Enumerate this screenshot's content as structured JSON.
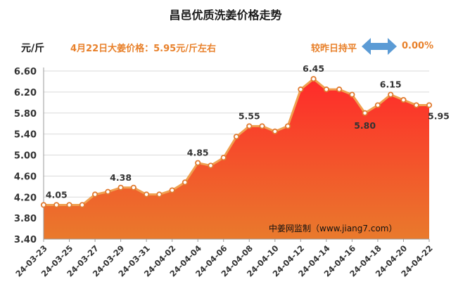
{
  "header": {
    "title": "昌邑优质洗姜价格走势",
    "unit": "元/斤",
    "price_note": "4月22日大姜价格：5.95元/斤左右",
    "trend_label": "较昨日持平",
    "trend_value": "0.00%",
    "trend_icon": "double-arrow-icon"
  },
  "watermark": "中姜网监制（www.jiang7.com）",
  "colors": {
    "accent": "#e8802a",
    "line": "#f0a050",
    "area_top": "#ff2a2a",
    "area_bottom": "#e97a2c",
    "marker_fill": "#ffffff",
    "arrow": "#5b9bd5"
  },
  "chart_data": {
    "type": "area",
    "title": "昌邑优质洗姜价格走势",
    "xlabel": "",
    "ylabel": "元/斤",
    "ylim": [
      3.4,
      6.6
    ],
    "yticks": [
      "3.40",
      "3.80",
      "4.20",
      "4.60",
      "5.00",
      "5.40",
      "5.80",
      "6.20",
      "6.60"
    ],
    "grid": true,
    "x": [
      "24-03-23",
      "24-03-24",
      "24-03-25",
      "24-03-26",
      "24-03-27",
      "24-03-28",
      "24-03-29",
      "24-03-30",
      "24-03-31",
      "24-04-01",
      "24-04-02",
      "24-04-03",
      "24-04-04",
      "24-04-05",
      "24-04-06",
      "24-04-07",
      "24-04-08",
      "24-04-09",
      "24-04-10",
      "24-04-11",
      "24-04-12",
      "24-04-13",
      "24-04-14",
      "24-04-15",
      "24-04-16",
      "24-04-17",
      "24-04-18",
      "24-04-19",
      "24-04-20",
      "24-04-21",
      "24-04-22"
    ],
    "xtick_labels": [
      "24-03-23",
      "24-03-25",
      "24-03-27",
      "24-03-29",
      "24-03-31",
      "24-04-02",
      "24-04-04",
      "24-04-06",
      "24-04-08",
      "24-04-10",
      "24-04-12",
      "24-04-14",
      "24-04-16",
      "24-04-18",
      "24-04-20",
      "24-04-22"
    ],
    "values": [
      4.05,
      4.05,
      4.05,
      4.05,
      4.25,
      4.3,
      4.38,
      4.38,
      4.25,
      4.25,
      4.33,
      4.48,
      4.85,
      4.8,
      4.95,
      5.35,
      5.55,
      5.55,
      5.45,
      5.55,
      6.25,
      6.45,
      6.25,
      6.25,
      6.15,
      5.8,
      5.95,
      6.15,
      6.05,
      5.95,
      5.95
    ],
    "annotations": [
      {
        "index": 1,
        "label": "4.05"
      },
      {
        "index": 6,
        "label": "4.38"
      },
      {
        "index": 12,
        "label": "4.85"
      },
      {
        "index": 16,
        "label": "5.55"
      },
      {
        "index": 21,
        "label": "6.45"
      },
      {
        "index": 25,
        "label": "5.80"
      },
      {
        "index": 27,
        "label": "6.15"
      },
      {
        "index": 30,
        "label": "5.95"
      }
    ]
  }
}
